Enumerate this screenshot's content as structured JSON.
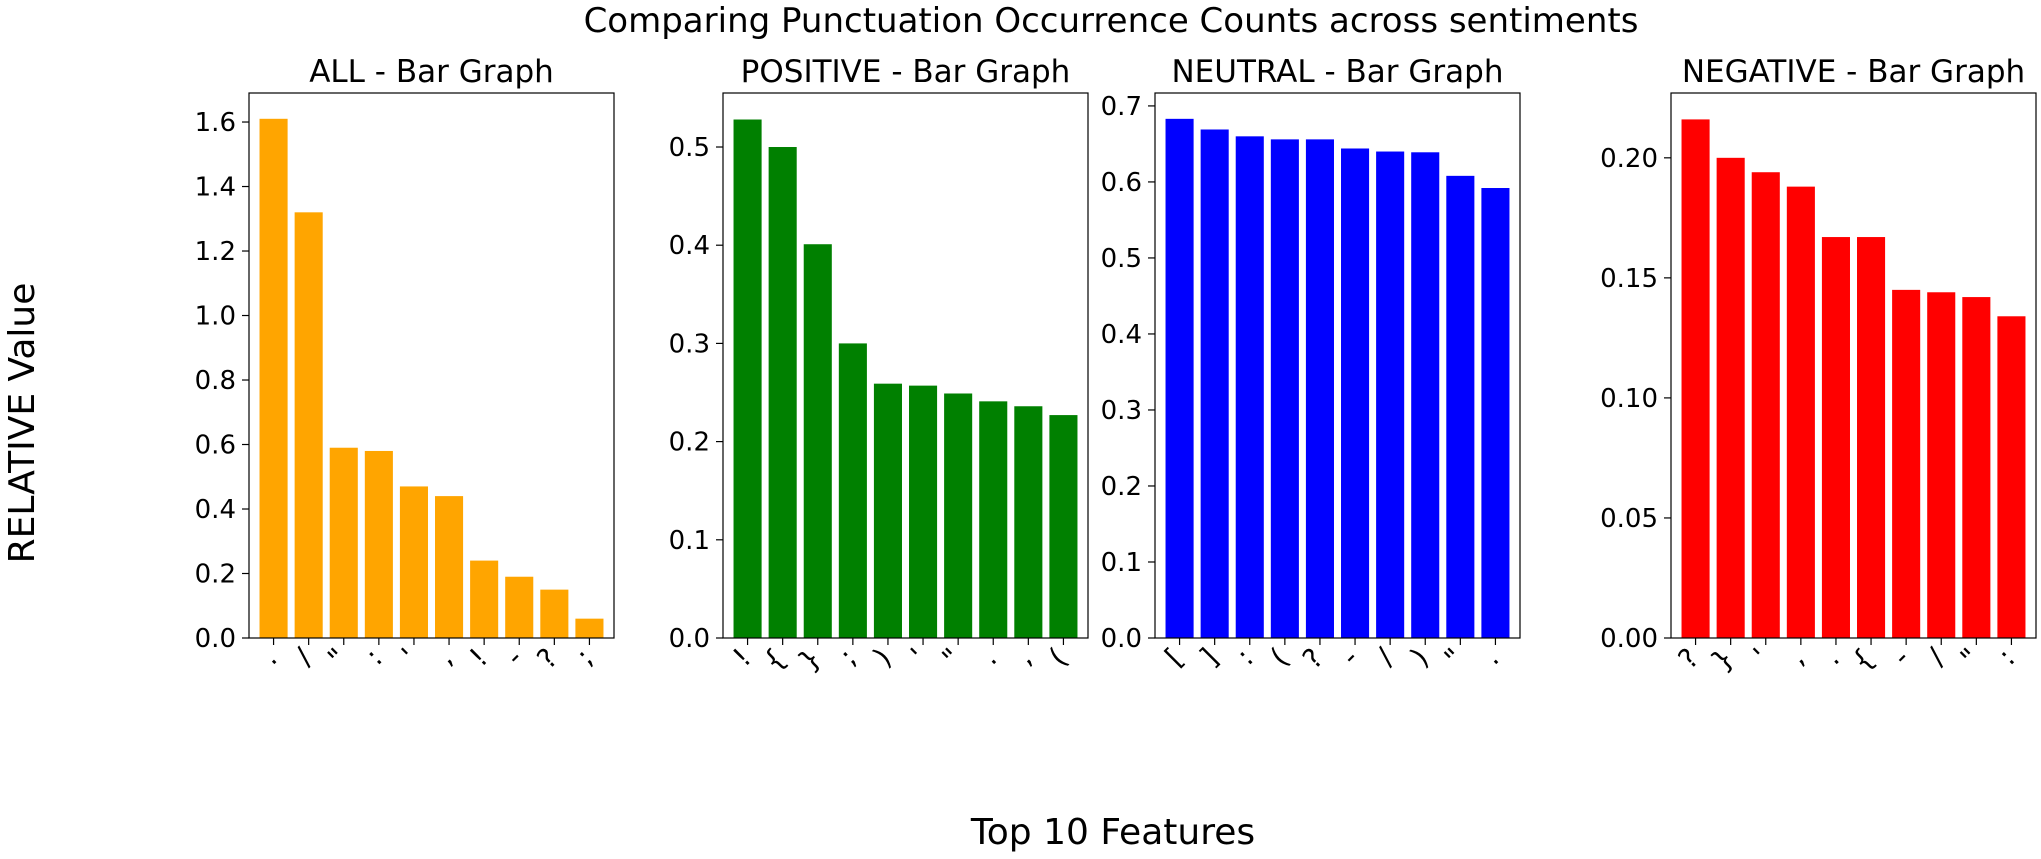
{
  "figure": {
    "title": "Comparing Punctuation Occurrence Counts across sentiments",
    "xlabel": "Top 10 Features",
    "ylabel": "RELATIVE Value"
  },
  "chart_data": [
    {
      "type": "bar",
      "title": "ALL - Bar Graph",
      "color": "#FFA500",
      "categories": [
        ".",
        "/",
        "\"",
        ":",
        "'",
        ",",
        "!",
        "-",
        "?",
        ";"
      ],
      "values": [
        1.61,
        1.32,
        0.59,
        0.58,
        0.47,
        0.44,
        0.24,
        0.19,
        0.15,
        0.06
      ],
      "yticks": [
        "0.0",
        "0.2",
        "0.4",
        "0.6",
        "0.8",
        "1.0",
        "1.2",
        "1.4",
        "1.6"
      ],
      "ylim": [
        0,
        1.69
      ],
      "grid": false
    },
    {
      "type": "bar",
      "title": "POSITIVE - Bar Graph",
      "color": "#008000",
      "categories": [
        "!",
        "{",
        "}",
        ";",
        ")",
        "'",
        "\"",
        ".",
        ",",
        "("
      ],
      "values": [
        0.528,
        0.5,
        0.401,
        0.3,
        0.259,
        0.257,
        0.249,
        0.241,
        0.236,
        0.227
      ],
      "yticks": [
        "0.0",
        "0.1",
        "0.2",
        "0.3",
        "0.4",
        "0.5"
      ],
      "ylim": [
        0,
        0.555
      ],
      "grid": false
    },
    {
      "type": "bar",
      "title": "NEUTRAL - Bar Graph",
      "color": "#0000FF",
      "categories": [
        "[",
        "]",
        ":",
        "(",
        "?",
        "-",
        "/",
        ")",
        "\"",
        "."
      ],
      "values": [
        0.683,
        0.669,
        0.66,
        0.656,
        0.656,
        0.644,
        0.64,
        0.639,
        0.608,
        0.592
      ],
      "yticks": [
        "0.0",
        "0.1",
        "0.2",
        "0.3",
        "0.4",
        "0.5",
        "0.6",
        "0.7"
      ],
      "ylim": [
        0,
        0.717
      ],
      "grid": false
    },
    {
      "type": "bar",
      "title": "NEGATIVE - Bar Graph",
      "color": "#FF0000",
      "categories": [
        "?",
        "}",
        "'",
        ",",
        ".",
        "{",
        "-",
        "/",
        "\"",
        ":"
      ],
      "values": [
        0.216,
        0.2,
        0.194,
        0.188,
        0.167,
        0.167,
        0.145,
        0.144,
        0.142,
        0.134
      ],
      "yticks": [
        "0.00",
        "0.05",
        "0.10",
        "0.15",
        "0.20"
      ],
      "ylim": [
        0,
        0.227
      ],
      "grid": false
    }
  ]
}
